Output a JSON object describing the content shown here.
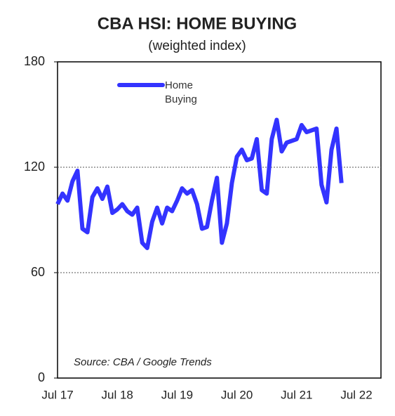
{
  "chart_data": {
    "type": "line",
    "title": "CBA HSI: HOME BUYING",
    "subtitle": "(weighted index)",
    "annotation": "Source: CBA / Google Trends",
    "categories": [
      "Jul 17",
      null,
      null,
      null,
      null,
      null,
      null,
      null,
      null,
      null,
      null,
      null,
      "Jul 18",
      null,
      null,
      null,
      null,
      null,
      null,
      null,
      null,
      null,
      null,
      null,
      "Jul 19",
      null,
      null,
      null,
      null,
      null,
      null,
      null,
      null,
      null,
      null,
      null,
      "Jul 20",
      null,
      null,
      null,
      null,
      null,
      null,
      null,
      null,
      null,
      null,
      null,
      "Jul 21",
      null,
      null,
      null,
      null,
      null,
      null,
      null,
      null,
      null,
      null,
      null,
      "Jul 22"
    ],
    "series": [
      {
        "name": "Home Buying",
        "color": "#3333ff",
        "values": [
          99,
          105,
          101,
          112,
          118,
          85,
          83,
          103,
          108,
          102,
          109,
          94,
          96,
          99,
          95,
          93,
          97,
          77,
          74,
          89,
          97,
          88,
          97,
          95,
          101,
          108,
          105,
          107,
          99,
          85,
          86,
          101,
          114,
          77,
          88,
          111,
          126,
          130,
          124,
          125,
          136,
          107,
          105,
          136,
          147,
          129,
          134,
          135,
          136,
          144,
          140,
          141,
          142,
          110,
          100,
          130,
          142,
          111,
          null,
          null,
          null
        ]
      }
    ],
    "ylim": [
      0,
      180
    ],
    "yticks": [
      0,
      60,
      120,
      180
    ],
    "grid": true,
    "legend": "upper left"
  }
}
